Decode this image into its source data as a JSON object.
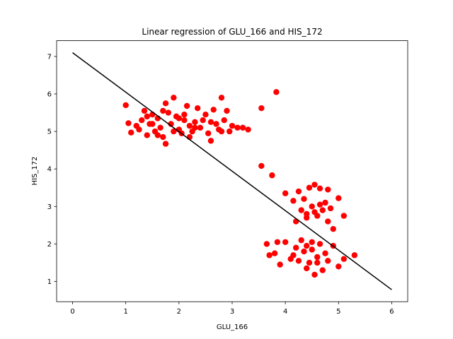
{
  "chart_data": {
    "type": "scatter",
    "title": "Linear regression of GLU_166 and HIS_172",
    "x_label": "GLU_166",
    "y_label": "HIS_172",
    "xlim": [
      -0.3,
      6.3
    ],
    "ylim": [
      0.46,
      7.42
    ],
    "xticks": [
      0,
      1,
      2,
      3,
      4,
      5,
      6
    ],
    "yticks": [
      1,
      2,
      3,
      4,
      5,
      6,
      7
    ],
    "points": {
      "color": "#ff0000",
      "x": [
        1.0,
        1.05,
        1.1,
        1.2,
        1.25,
        1.3,
        1.35,
        1.4,
        1.45,
        1.5,
        1.55,
        1.6,
        1.65,
        1.7,
        1.75,
        1.8,
        1.85,
        1.9,
        1.95,
        2.0,
        2.05,
        2.1,
        2.15,
        2.2,
        2.25,
        2.3,
        2.35,
        2.4,
        2.45,
        2.5,
        2.55,
        2.6,
        2.65,
        2.7,
        2.75,
        2.8,
        2.85,
        2.9,
        2.95,
        3.0,
        3.1,
        3.2,
        3.3,
        1.5,
        1.7,
        1.9,
        2.1,
        2.3,
        1.4,
        1.6,
        1.75,
        2.0,
        2.2,
        2.6,
        2.8,
        3.83,
        3.55,
        3.55,
        3.75,
        4.0,
        4.15,
        4.2,
        4.25,
        4.3,
        4.35,
        4.4,
        4.45,
        4.5,
        4.55,
        4.6,
        4.65,
        4.7,
        4.75,
        4.8,
        4.85,
        4.9,
        5.0,
        5.1,
        4.55,
        4.65,
        4.4,
        4.8,
        3.65,
        3.7,
        3.8,
        3.85,
        3.9,
        4.0,
        4.1,
        4.15,
        4.2,
        4.25,
        4.3,
        4.35,
        4.4,
        4.45,
        4.5,
        4.55,
        4.6,
        4.65,
        4.7,
        4.75,
        4.8,
        4.9,
        5.0,
        5.1,
        5.3,
        4.5,
        4.6,
        4.4
      ],
      "y": [
        5.7,
        5.22,
        4.97,
        5.15,
        5.05,
        5.3,
        5.55,
        4.9,
        5.2,
        5.45,
        5.0,
        5.35,
        5.1,
        4.85,
        4.67,
        5.5,
        5.2,
        5.9,
        5.4,
        5.05,
        4.95,
        5.3,
        5.68,
        5.15,
        5.0,
        5.25,
        5.62,
        5.1,
        5.3,
        5.45,
        4.95,
        4.75,
        5.58,
        5.2,
        5.05,
        5.9,
        5.3,
        5.55,
        5.0,
        5.15,
        5.1,
        5.1,
        5.05,
        5.2,
        5.55,
        5.0,
        5.45,
        5.1,
        5.4,
        4.9,
        5.75,
        5.35,
        4.85,
        5.25,
        5.0,
        6.05,
        5.62,
        4.08,
        3.83,
        3.35,
        3.15,
        2.6,
        3.4,
        2.9,
        3.2,
        2.8,
        3.5,
        3.0,
        3.58,
        2.75,
        3.48,
        2.9,
        3.1,
        2.6,
        2.95,
        2.4,
        3.22,
        2.75,
        2.85,
        3.05,
        2.7,
        3.45,
        2.0,
        1.7,
        1.75,
        2.05,
        1.45,
        2.05,
        1.6,
        1.7,
        1.9,
        1.55,
        2.1,
        1.8,
        1.95,
        1.5,
        1.85,
        1.18,
        1.65,
        2.0,
        1.3,
        1.75,
        1.55,
        1.95,
        1.4,
        1.6,
        1.7,
        2.05,
        1.5,
        1.35
      ]
    },
    "line": {
      "color": "#000000",
      "x": [
        0,
        6
      ],
      "y": [
        7.1,
        0.78
      ]
    }
  }
}
